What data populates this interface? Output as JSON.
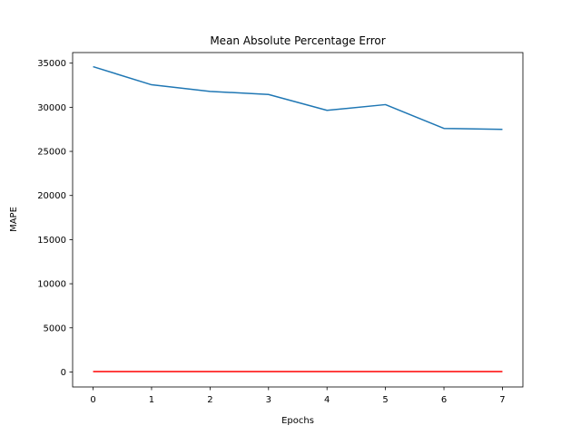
{
  "chart_data": {
    "type": "line",
    "title": "Mean Absolute Percentage Error",
    "xlabel": "Epochs",
    "ylabel": "MAPE",
    "x": [
      0,
      1,
      2,
      3,
      4,
      5,
      6,
      7
    ],
    "xlim": [
      -0.35,
      7.35
    ],
    "ylim": [
      -1700,
      36200
    ],
    "xticks": [
      0,
      1,
      2,
      3,
      4,
      5,
      6,
      7
    ],
    "yticks": [
      0,
      5000,
      10000,
      15000,
      20000,
      25000,
      30000,
      35000
    ],
    "grid": false,
    "series": [
      {
        "color": "#1f77b4",
        "values": [
          34600,
          32550,
          31800,
          31450,
          29650,
          30300,
          27600,
          27500
        ]
      },
      {
        "color": "#ff0000",
        "values": [
          50,
          50,
          50,
          50,
          50,
          50,
          50,
          50
        ]
      }
    ]
  }
}
